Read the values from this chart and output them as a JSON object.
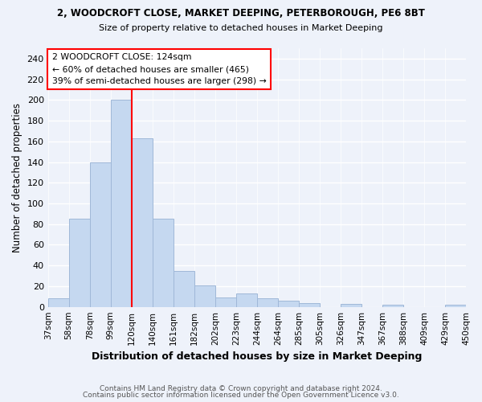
{
  "title": "2, WOODCROFT CLOSE, MARKET DEEPING, PETERBOROUGH, PE6 8BT",
  "subtitle": "Size of property relative to detached houses in Market Deeping",
  "xlabel": "Distribution of detached houses by size in Market Deeping",
  "ylabel": "Number of detached properties",
  "bin_labels": [
    "37sqm",
    "58sqm",
    "78sqm",
    "99sqm",
    "120sqm",
    "140sqm",
    "161sqm",
    "182sqm",
    "202sqm",
    "223sqm",
    "244sqm",
    "264sqm",
    "285sqm",
    "305sqm",
    "326sqm",
    "347sqm",
    "367sqm",
    "388sqm",
    "409sqm",
    "429sqm",
    "450sqm"
  ],
  "bar_values": [
    8,
    85,
    140,
    200,
    163,
    85,
    35,
    21,
    9,
    13,
    8,
    6,
    4,
    0,
    3,
    0,
    2,
    0,
    0,
    2
  ],
  "bar_color": "#c5d8f0",
  "bar_edge_color": "#a0b8d8",
  "vline_color": "red",
  "vline_pos": 3.5,
  "annotation_text": "2 WOODCROFT CLOSE: 124sqm\n← 60% of detached houses are smaller (465)\n39% of semi-detached houses are larger (298) →",
  "annotation_box_color": "white",
  "annotation_box_edge_color": "red",
  "ylim": [
    0,
    250
  ],
  "yticks": [
    0,
    20,
    40,
    60,
    80,
    100,
    120,
    140,
    160,
    180,
    200,
    220,
    240
  ],
  "footer_line1": "Contains HM Land Registry data © Crown copyright and database right 2024.",
  "footer_line2": "Contains public sector information licensed under the Open Government Licence v3.0.",
  "bg_color": "#eef2fa"
}
